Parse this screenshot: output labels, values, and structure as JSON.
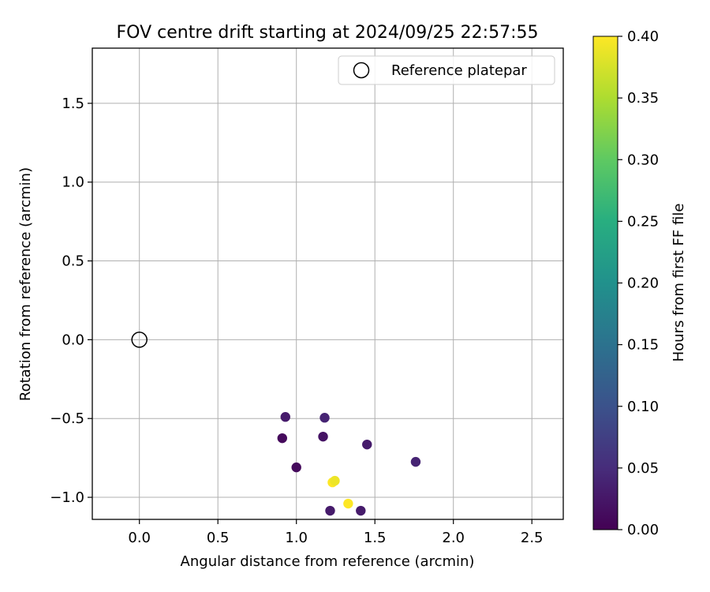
{
  "chart_data": {
    "type": "scatter",
    "title": "FOV centre drift starting at 2024/09/25 22:57:55",
    "xlabel": "Angular distance from reference (arcmin)",
    "ylabel": "Rotation from reference (arcmin)",
    "xlim": [
      -0.3,
      2.7
    ],
    "ylim": [
      -1.14,
      1.85
    ],
    "xticks": [
      0.0,
      0.5,
      1.0,
      1.5,
      2.0,
      2.5
    ],
    "xtick_labels": [
      "0.0",
      "0.5",
      "1.0",
      "1.5",
      "2.0",
      "2.5"
    ],
    "yticks": [
      -1.0,
      -0.5,
      0.0,
      0.5,
      1.0,
      1.5
    ],
    "ytick_labels": [
      "−1.0",
      "−0.5",
      "0.0",
      "0.5",
      "1.0",
      "1.5"
    ],
    "grid": true,
    "legend": {
      "placement": "top-right",
      "entries": [
        {
          "label": "Reference platepar",
          "marker": "open-circle"
        }
      ]
    },
    "reference_point": {
      "x": 0.0,
      "y": 0.0
    },
    "points": [
      {
        "x": 0.93,
        "y": -0.49,
        "hours": 0.03
      },
      {
        "x": 1.18,
        "y": -0.495,
        "hours": 0.04
      },
      {
        "x": 0.91,
        "y": -0.625,
        "hours": 0.01
      },
      {
        "x": 1.17,
        "y": -0.615,
        "hours": 0.02
      },
      {
        "x": 1.45,
        "y": -0.665,
        "hours": 0.03
      },
      {
        "x": 1.76,
        "y": -0.775,
        "hours": 0.04
      },
      {
        "x": 1.0,
        "y": -0.81,
        "hours": 0.01
      },
      {
        "x": 1.23,
        "y": -0.905,
        "hours": 0.4
      },
      {
        "x": 1.245,
        "y": -0.895,
        "hours": 0.39
      },
      {
        "x": 1.33,
        "y": -1.04,
        "hours": 0.4
      },
      {
        "x": 1.215,
        "y": -1.085,
        "hours": 0.03
      },
      {
        "x": 1.41,
        "y": -1.085,
        "hours": 0.03
      }
    ],
    "colorbar": {
      "label": "Hours from first FF file",
      "colormap": "viridis",
      "range": [
        0.0,
        0.4
      ],
      "ticks": [
        0.0,
        0.05,
        0.1,
        0.15,
        0.2,
        0.25,
        0.3,
        0.35,
        0.4
      ],
      "tick_labels": [
        "0.00",
        "0.05",
        "0.10",
        "0.15",
        "0.20",
        "0.25",
        "0.30",
        "0.35",
        "0.40"
      ]
    }
  }
}
